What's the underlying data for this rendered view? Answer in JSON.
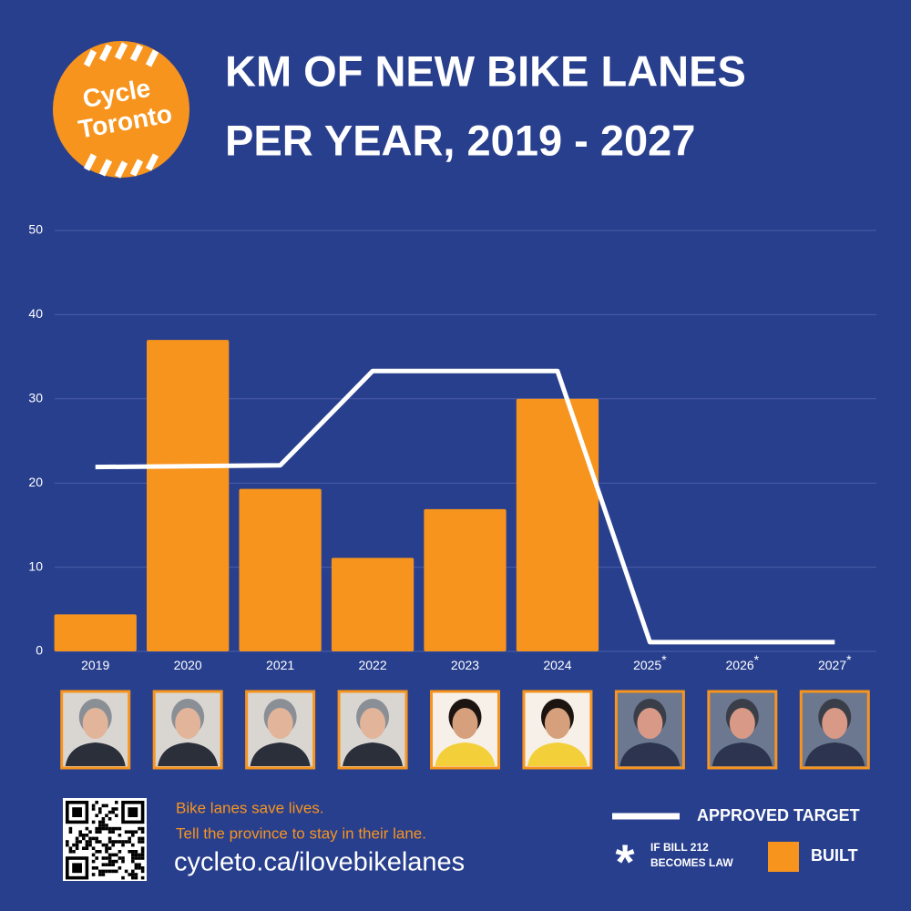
{
  "chart_data": {
    "type": "bar",
    "logo": [
      "Cycle",
      "Toronto"
    ],
    "title": [
      "KM OF NEW BIKE LANES",
      "PER YEAR, 2019 - 2027"
    ],
    "categories": [
      "2019",
      "2020",
      "2021",
      "2022",
      "2023",
      "2024",
      "2025",
      "2026",
      "2027"
    ],
    "category_notes": [
      null,
      null,
      null,
      null,
      null,
      null,
      "*",
      "*",
      "*"
    ],
    "series": [
      {
        "name": "BUILT",
        "type": "bar",
        "color": "#f7941d",
        "values": [
          4.4,
          37,
          19.3,
          11.1,
          16.9,
          30,
          null,
          null,
          null
        ]
      },
      {
        "name": "APPROVED TARGET",
        "type": "line",
        "color": "#ffffff",
        "values": [
          21.9,
          22,
          22.1,
          33.3,
          33.3,
          33.3,
          1.1,
          1.1,
          1.1
        ]
      }
    ],
    "ylim": [
      0,
      50
    ],
    "yticks": [
      0,
      10,
      20,
      30,
      40,
      50
    ],
    "grid": true,
    "footnote": {
      "marker": "*",
      "text": [
        "IF BILL 212",
        "BECOMES LAW"
      ]
    },
    "message": [
      "Bike lanes save lives.",
      "Tell the province to stay in their lane."
    ],
    "url": "cycleto.ca/ilovebikelanes"
  }
}
